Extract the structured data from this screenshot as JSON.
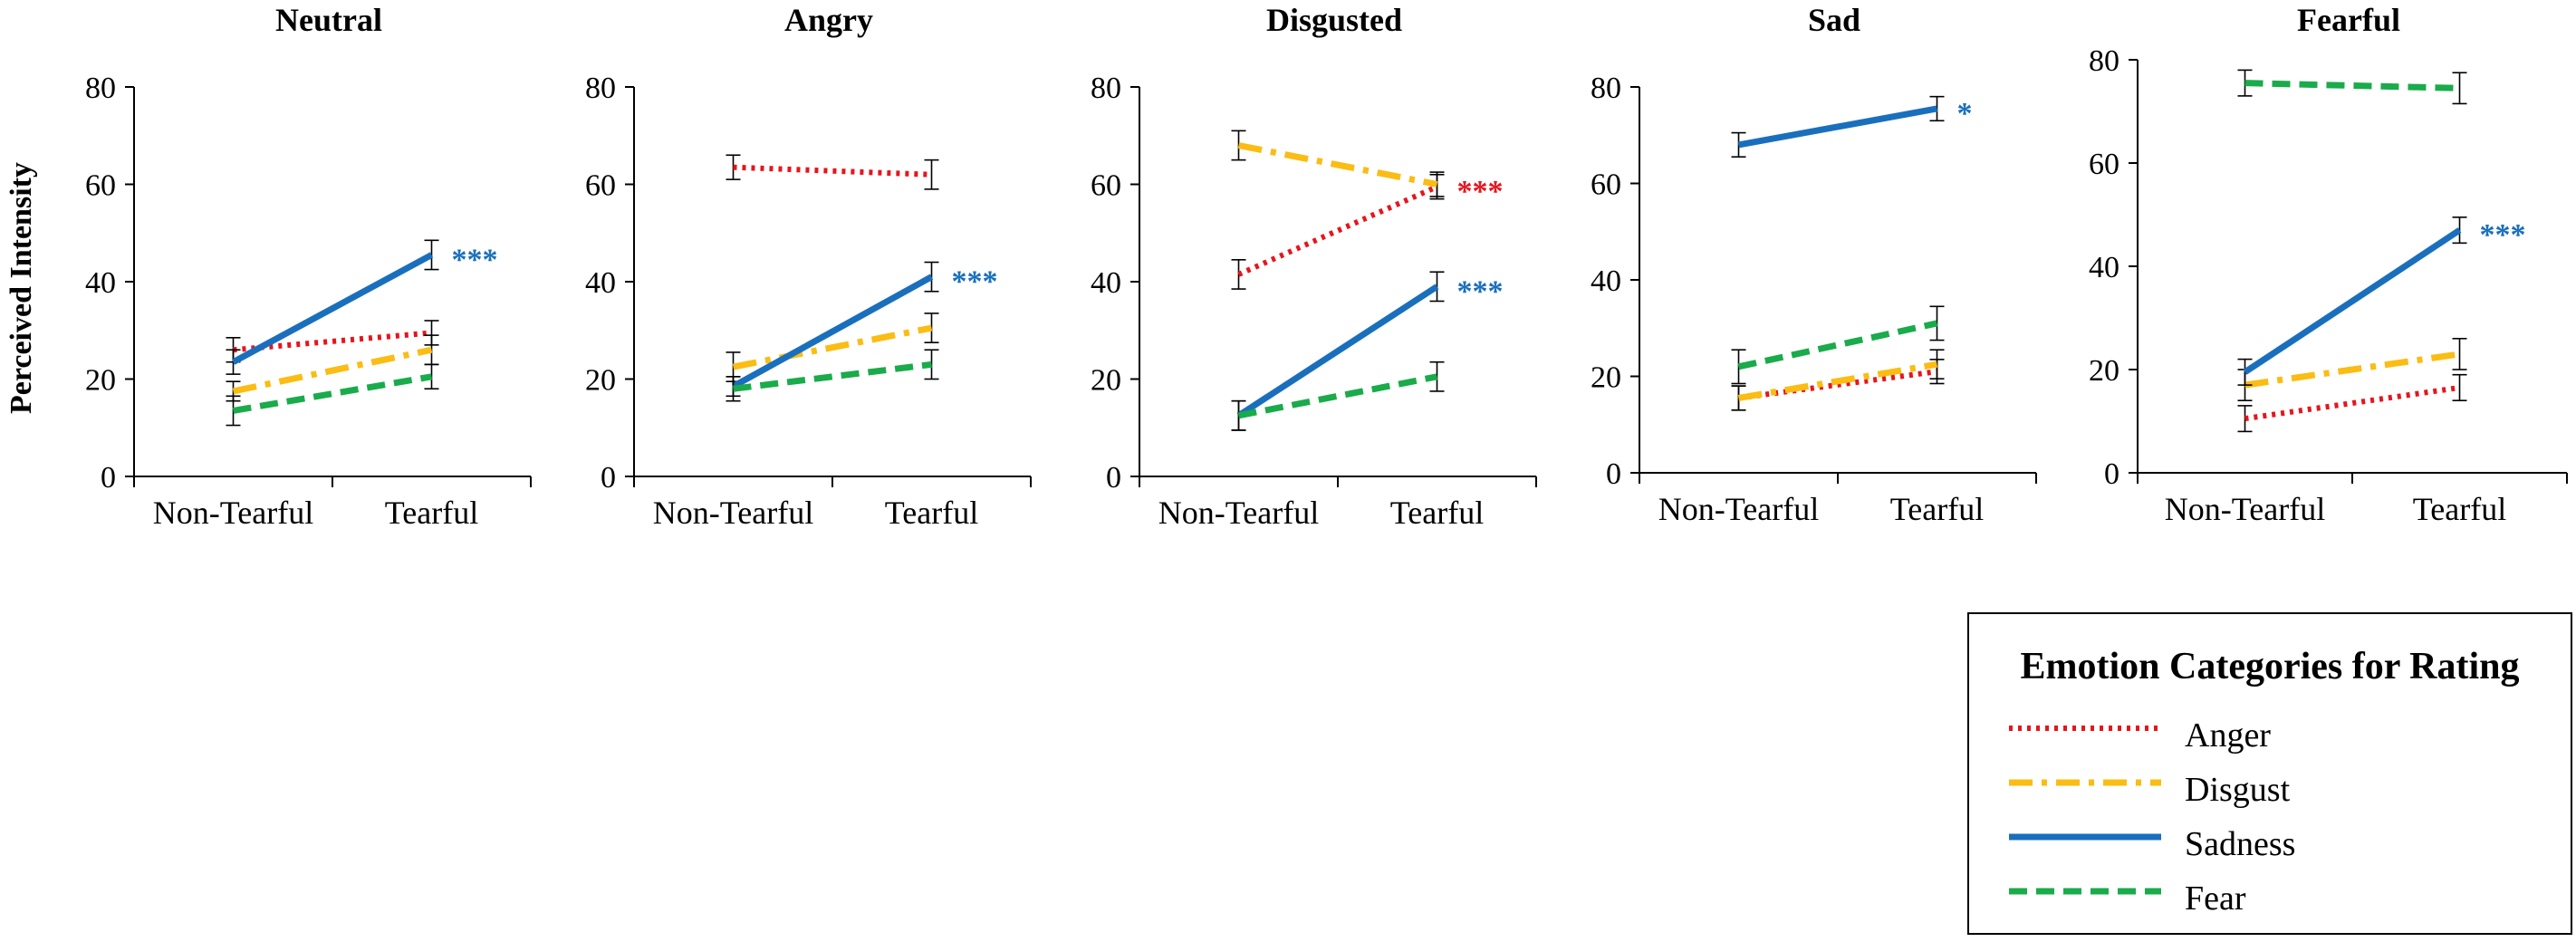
{
  "figure": {
    "y_axis_label": "Perceived Intensity",
    "colors": {
      "Anger": "#e8141c",
      "Disgust": "#fbbc13",
      "Sadness": "#1a6fbd",
      "Fear": "#1aab4b"
    }
  },
  "chart_data": [
    {
      "type": "line",
      "title": "Neutral",
      "categories": [
        "Non-Tearful",
        "Tearful"
      ],
      "ylim": [
        0,
        80
      ],
      "yticks": [
        "0",
        "20",
        "40",
        "60",
        "80"
      ],
      "series": [
        {
          "name": "Anger",
          "values": [
            26,
            29.5
          ],
          "errors": [
            2.5,
            2.5
          ]
        },
        {
          "name": "Disgust",
          "values": [
            17.5,
            26
          ],
          "errors": [
            2,
            3
          ]
        },
        {
          "name": "Sadness",
          "values": [
            23.5,
            45.5
          ],
          "errors": [
            2.5,
            3
          ]
        },
        {
          "name": "Fear",
          "values": [
            13.5,
            20.5
          ],
          "errors": [
            3,
            2.5
          ]
        }
      ],
      "annotations": [
        {
          "series": "Sadness",
          "text": "***"
        }
      ]
    },
    {
      "type": "line",
      "title": "Angry",
      "categories": [
        "Non-Tearful",
        "Tearful"
      ],
      "ylim": [
        0,
        80
      ],
      "yticks": [
        "0",
        "20",
        "40",
        "60",
        "80"
      ],
      "series": [
        {
          "name": "Anger",
          "values": [
            63.5,
            62
          ],
          "errors": [
            2.5,
            3
          ]
        },
        {
          "name": "Disgust",
          "values": [
            22.5,
            30.5
          ],
          "errors": [
            3,
            3
          ]
        },
        {
          "name": "Sadness",
          "values": [
            18.5,
            41
          ],
          "errors": [
            2,
            3
          ]
        },
        {
          "name": "Fear",
          "values": [
            18,
            23
          ],
          "errors": [
            2.5,
            3
          ]
        }
      ],
      "annotations": [
        {
          "series": "Sadness",
          "text": "***"
        }
      ]
    },
    {
      "type": "line",
      "title": "Disgusted",
      "categories": [
        "Non-Tearful",
        "Tearful"
      ],
      "ylim": [
        0,
        80
      ],
      "yticks": [
        "0",
        "20",
        "40",
        "60",
        "80"
      ],
      "series": [
        {
          "name": "Anger",
          "values": [
            41.5,
            59.5
          ],
          "errors": [
            3,
            2.5
          ]
        },
        {
          "name": "Disgust",
          "values": [
            68,
            60
          ],
          "errors": [
            3,
            2.5
          ]
        },
        {
          "name": "Sadness",
          "values": [
            12.5,
            39
          ],
          "errors": [
            3,
            3
          ]
        },
        {
          "name": "Fear",
          "values": [
            12.5,
            20.5
          ],
          "errors": [
            3,
            3
          ]
        }
      ],
      "annotations": [
        {
          "series": "Anger",
          "text": "***"
        },
        {
          "series": "Sadness",
          "text": "***"
        }
      ]
    },
    {
      "type": "line",
      "title": "Sad",
      "categories": [
        "Non-Tearful",
        "Tearful"
      ],
      "ylim": [
        0,
        80
      ],
      "yticks": [
        "0",
        "20",
        "40",
        "60",
        "80"
      ],
      "series": [
        {
          "name": "Anger",
          "values": [
            15.5,
            21
          ],
          "errors": [
            2.5,
            2.5
          ]
        },
        {
          "name": "Disgust",
          "values": [
            15.5,
            22.5
          ],
          "errors": [
            2.5,
            3
          ]
        },
        {
          "name": "Sadness",
          "values": [
            68,
            75.5
          ],
          "errors": [
            2.5,
            2.5
          ]
        },
        {
          "name": "Fear",
          "values": [
            22,
            31
          ],
          "errors": [
            3.5,
            3.5
          ]
        }
      ],
      "annotations": [
        {
          "series": "Sadness",
          "text": "*"
        }
      ]
    },
    {
      "type": "line",
      "title": "Fearful",
      "categories": [
        "Non-Tearful",
        "Tearful"
      ],
      "ylim": [
        0,
        80
      ],
      "yticks": [
        "0",
        "20",
        "40",
        "60",
        "80"
      ],
      "series": [
        {
          "name": "Anger",
          "values": [
            10.5,
            16.5
          ],
          "errors": [
            2.5,
            2.5
          ]
        },
        {
          "name": "Disgust",
          "values": [
            17,
            23
          ],
          "errors": [
            3,
            3
          ]
        },
        {
          "name": "Sadness",
          "values": [
            19.5,
            47
          ],
          "errors": [
            2.5,
            2.5
          ]
        },
        {
          "name": "Fear",
          "values": [
            75.5,
            74.5
          ],
          "errors": [
            2.5,
            3
          ]
        }
      ],
      "annotations": [
        {
          "series": "Sadness",
          "text": "***"
        }
      ]
    }
  ],
  "legend": {
    "title": "Emotion Categories for Rating",
    "items": [
      {
        "name": "Anger",
        "label": "Anger"
      },
      {
        "name": "Disgust",
        "label": "Disgust"
      },
      {
        "name": "Sadness",
        "label": "Sadness"
      },
      {
        "name": "Fear",
        "label": "Fear"
      }
    ]
  }
}
